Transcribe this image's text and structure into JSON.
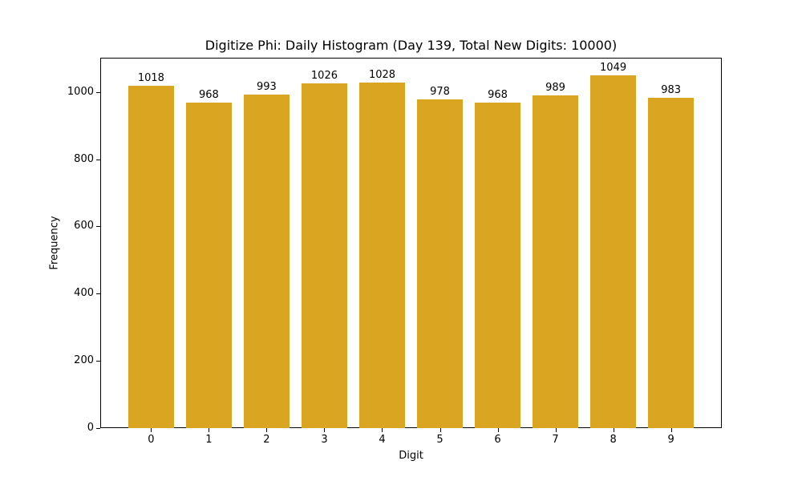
{
  "chart_data": {
    "type": "bar",
    "title": "Digitize Phi: Daily Histogram (Day 139, Total New Digits: 10000)",
    "xlabel": "Digit",
    "ylabel": "Frequency",
    "categories": [
      "0",
      "1",
      "2",
      "3",
      "4",
      "5",
      "6",
      "7",
      "8",
      "9"
    ],
    "values": [
      1018,
      968,
      993,
      1026,
      1028,
      978,
      968,
      989,
      1049,
      983
    ],
    "bar_labels": [
      "1018",
      "968",
      "993",
      "1026",
      "1028",
      "978",
      "968",
      "989",
      "1049",
      "983"
    ],
    "yticks": [
      0,
      200,
      400,
      600,
      800,
      1000
    ],
    "ylim": [
      0,
      1102
    ],
    "grid": false,
    "legend": null,
    "colors": {
      "bar": "#DAA520",
      "axis": "#000000",
      "background": "#ffffff"
    }
  }
}
